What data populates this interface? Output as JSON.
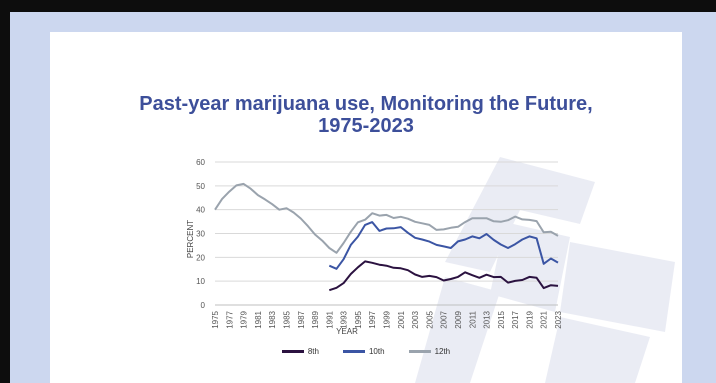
{
  "chart_data": {
    "type": "line",
    "title": "Past-year marijuana use, Monitoring the Future,",
    "subtitle": "1975-2023",
    "xlabel": "YEAR",
    "ylabel": "PERCENT",
    "ylim": [
      0,
      60
    ],
    "yticks": [
      0,
      10,
      20,
      30,
      40,
      50,
      60
    ],
    "xticks": [
      "1975",
      "1977",
      "1979",
      "1981",
      "1983",
      "1985",
      "1987",
      "1989",
      "1991",
      "1993",
      "1995",
      "1997",
      "1999",
      "2001",
      "2003",
      "2005",
      "2007",
      "2009",
      "2011",
      "2013",
      "2015",
      "2017",
      "2019",
      "2021",
      "2023"
    ],
    "grid": true,
    "legend_position": "bottom",
    "series": [
      {
        "name": "8th",
        "color": "#2b1240",
        "x": [
          1991,
          1992,
          1993,
          1994,
          1995,
          1996,
          1997,
          1998,
          1999,
          2000,
          2001,
          2002,
          2003,
          2004,
          2005,
          2006,
          2007,
          2008,
          2009,
          2010,
          2011,
          2012,
          2013,
          2014,
          2015,
          2016,
          2017,
          2018,
          2019,
          2020,
          2021,
          2022,
          2023
        ],
        "values": [
          6.2,
          7.2,
          9.2,
          13.0,
          15.8,
          18.3,
          17.7,
          16.9,
          16.5,
          15.6,
          15.4,
          14.6,
          12.8,
          11.8,
          12.2,
          11.7,
          10.3,
          10.9,
          11.8,
          13.7,
          12.5,
          11.4,
          12.7,
          11.7,
          11.8,
          9.4,
          10.1,
          10.5,
          11.8,
          11.4,
          7.1,
          8.3,
          8.0
        ]
      },
      {
        "name": "10th",
        "color": "#3b55a4",
        "x": [
          1991,
          1992,
          1993,
          1994,
          1995,
          1996,
          1997,
          1998,
          1999,
          2000,
          2001,
          2002,
          2003,
          2004,
          2005,
          2006,
          2007,
          2008,
          2009,
          2010,
          2011,
          2012,
          2013,
          2014,
          2015,
          2016,
          2017,
          2018,
          2019,
          2020,
          2021,
          2022,
          2023
        ],
        "values": [
          16.5,
          15.2,
          19.2,
          25.2,
          28.7,
          33.6,
          34.8,
          31.1,
          32.1,
          32.2,
          32.7,
          30.3,
          28.2,
          27.5,
          26.6,
          25.2,
          24.6,
          23.9,
          26.7,
          27.5,
          28.8,
          28.0,
          29.8,
          27.3,
          25.4,
          23.9,
          25.5,
          27.5,
          28.8,
          28.0,
          17.3,
          19.5,
          17.8
        ]
      },
      {
        "name": "12th",
        "color": "#9aa3ad",
        "x": [
          1975,
          1976,
          1977,
          1978,
          1979,
          1980,
          1981,
          1982,
          1983,
          1984,
          1985,
          1986,
          1987,
          1988,
          1989,
          1990,
          1991,
          1992,
          1993,
          1994,
          1995,
          1996,
          1997,
          1998,
          1999,
          2000,
          2001,
          2002,
          2003,
          2004,
          2005,
          2006,
          2007,
          2008,
          2009,
          2010,
          2011,
          2012,
          2013,
          2014,
          2015,
          2016,
          2017,
          2018,
          2019,
          2020,
          2021,
          2022,
          2023
        ],
        "values": [
          40.0,
          44.5,
          47.6,
          50.2,
          50.8,
          48.8,
          46.1,
          44.3,
          42.3,
          40.0,
          40.6,
          38.8,
          36.3,
          33.1,
          29.6,
          27.0,
          23.9,
          21.9,
          26.0,
          30.7,
          34.7,
          35.8,
          38.5,
          37.5,
          37.8,
          36.5,
          37.0,
          36.2,
          34.9,
          34.3,
          33.6,
          31.5,
          31.7,
          32.4,
          32.8,
          34.8,
          36.4,
          36.4,
          36.4,
          35.1,
          34.9,
          35.6,
          37.1,
          35.9,
          35.7,
          35.2,
          30.5,
          30.7,
          29.0
        ]
      }
    ]
  }
}
